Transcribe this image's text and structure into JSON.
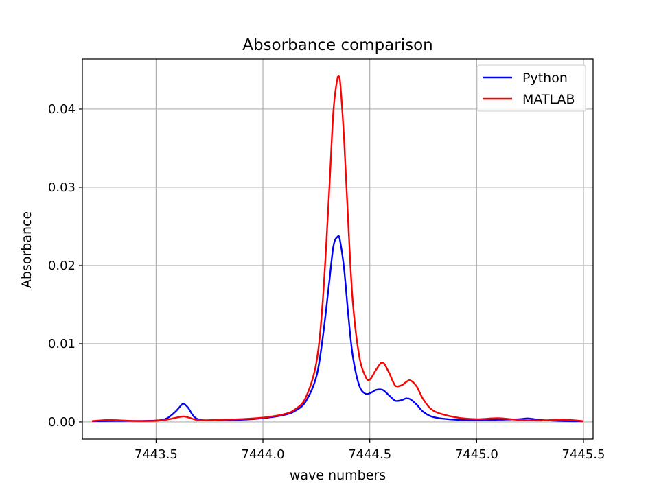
{
  "chart_data": {
    "type": "line",
    "title": "Absorbance comparison",
    "xlabel": "wave numbers",
    "ylabel": "Absorbance",
    "xlim": [
      7443.155,
      7445.545
    ],
    "ylim": [
      -0.0022,
      0.0464
    ],
    "xticks": [
      7443.5,
      7444.0,
      7444.5,
      7445.0,
      7445.5
    ],
    "xtick_labels": [
      "7443.5",
      "7444.0",
      "7444.5",
      "7445.0",
      "7445.5"
    ],
    "yticks": [
      0.0,
      0.01,
      0.02,
      0.03,
      0.04
    ],
    "ytick_labels": [
      "0.00",
      "0.01",
      "0.02",
      "0.03",
      "0.04"
    ],
    "grid": true,
    "legend_position": "upper right",
    "series": [
      {
        "name": "Python",
        "color": "#0000ff",
        "x": [
          7443.2,
          7443.3,
          7443.4,
          7443.5,
          7443.55,
          7443.59,
          7443.62,
          7443.63,
          7443.65,
          7443.68,
          7443.72,
          7443.8,
          7443.9,
          7444.0,
          7444.1,
          7444.15,
          7444.2,
          7444.25,
          7444.28,
          7444.31,
          7444.33,
          7444.35,
          7444.36,
          7444.38,
          7444.4,
          7444.42,
          7444.45,
          7444.48,
          7444.51,
          7444.53,
          7444.56,
          7444.59,
          7444.62,
          7444.65,
          7444.67,
          7444.69,
          7444.72,
          7444.75,
          7444.8,
          7444.9,
          7445.0,
          7445.1,
          7445.2,
          7445.24,
          7445.3,
          7445.4,
          7445.5
        ],
        "y": [
          0.0001,
          0.00012,
          0.00013,
          0.00018,
          0.00045,
          0.0013,
          0.0022,
          0.0023,
          0.0018,
          0.0006,
          0.00022,
          0.00022,
          0.00028,
          0.00048,
          0.0009,
          0.0014,
          0.0026,
          0.0058,
          0.0108,
          0.0178,
          0.0225,
          0.0237,
          0.0233,
          0.0195,
          0.0135,
          0.0085,
          0.0047,
          0.0036,
          0.0038,
          0.0041,
          0.0041,
          0.0034,
          0.0027,
          0.0028,
          0.003,
          0.0029,
          0.0022,
          0.0013,
          0.0006,
          0.00028,
          0.00022,
          0.00028,
          0.00035,
          0.00045,
          0.00025,
          0.00012,
          8e-05
        ]
      },
      {
        "name": "MATLAB",
        "color": "#ff0000",
        "x": [
          7443.2,
          7443.28,
          7443.4,
          7443.5,
          7443.56,
          7443.6,
          7443.63,
          7443.66,
          7443.7,
          7443.8,
          7443.9,
          7444.0,
          7444.1,
          7444.15,
          7444.2,
          7444.25,
          7444.28,
          7444.31,
          7444.33,
          7444.35,
          7444.36,
          7444.38,
          7444.4,
          7444.42,
          7444.45,
          7444.48,
          7444.5,
          7444.53,
          7444.56,
          7444.59,
          7444.62,
          7444.65,
          7444.67,
          7444.69,
          7444.72,
          7444.75,
          7444.8,
          7444.9,
          7445.0,
          7445.1,
          7445.2,
          7445.3,
          7445.4,
          7445.5
        ],
        "y": [
          0.0001,
          0.00025,
          0.00012,
          0.00014,
          0.00035,
          0.00058,
          0.0007,
          0.0005,
          0.00022,
          0.00028,
          0.00036,
          0.00055,
          0.001,
          0.0016,
          0.0031,
          0.0076,
          0.0155,
          0.0295,
          0.0398,
          0.0441,
          0.0438,
          0.036,
          0.025,
          0.0155,
          0.0085,
          0.0058,
          0.0054,
          0.0067,
          0.0076,
          0.0063,
          0.0046,
          0.0047,
          0.0051,
          0.0053,
          0.0045,
          0.0029,
          0.0014,
          0.0006,
          0.00035,
          0.00048,
          0.00025,
          0.00018,
          0.0003,
          0.0001
        ]
      }
    ]
  }
}
